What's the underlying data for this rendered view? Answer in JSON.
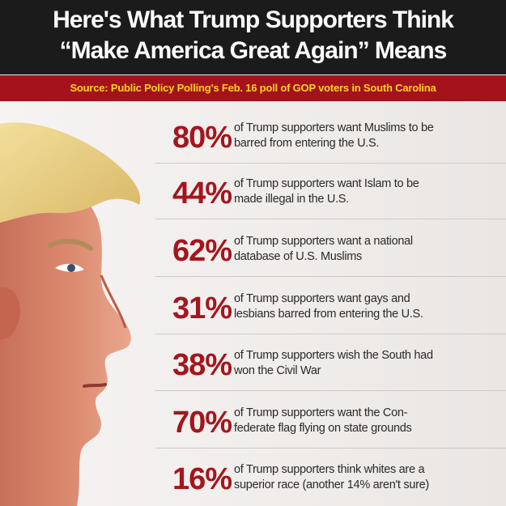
{
  "header": {
    "title_line1": "Here's What Trump Supporters Think",
    "title_line2": "“Make America Great Again” Means"
  },
  "source": "Source: Public Policy Polling's Feb. 16 poll of GOP voters in South Carolina",
  "stats": [
    {
      "percent": "80%",
      "text": "of Trump supporters want Muslims to be\nbarred from entering the U.S."
    },
    {
      "percent": "44%",
      "text": "of Trump supporters want Islam to be\nmade illegal in the U.S."
    },
    {
      "percent": "62%",
      "text": "of Trump supporters want a national\ndatabase of U.S. Muslims"
    },
    {
      "percent": "31%",
      "text": "of Trump supporters want gays and\nlesbians barred from entering the U.S."
    },
    {
      "percent": "38%",
      "text": "of Trump supporters wish the South had\nwon the Civil War"
    },
    {
      "percent": "70%",
      "text": "of Trump supporters want the Con-\nfederate flag flying on state grounds"
    },
    {
      "percent": "16%",
      "text": "of Trump supporters think whites are a\nsuperior race (another 14% aren't sure)"
    }
  ],
  "colors": {
    "header_bg": "#1b1b1b",
    "source_bar_bg": "#a4121b",
    "source_text": "#ffd21f",
    "percent": "#a3161d"
  }
}
